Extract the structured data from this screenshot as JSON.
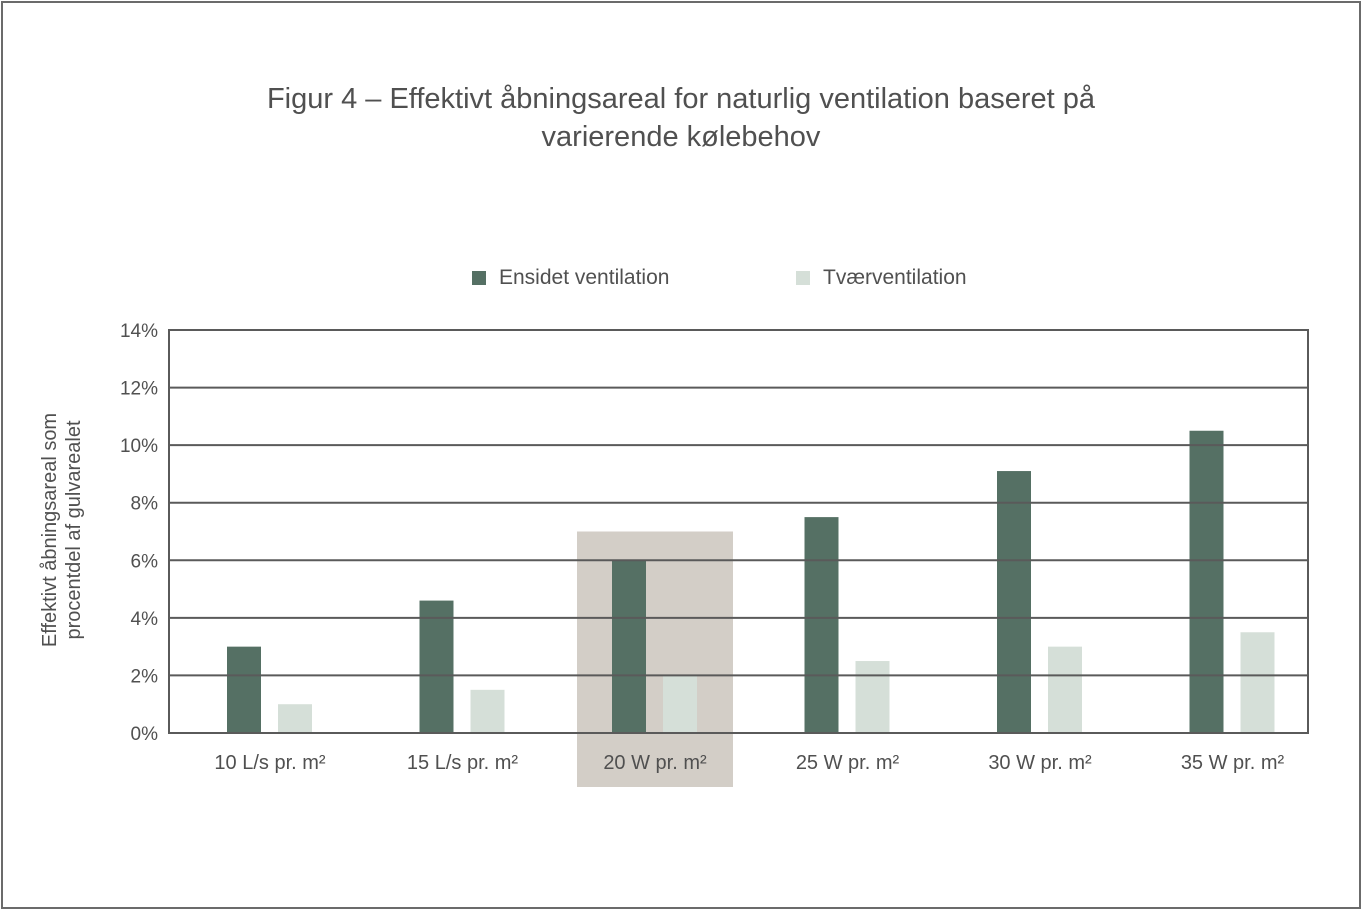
{
  "chart_data": {
    "type": "bar",
    "title": "Figur 4 – Effektivt åbningsareal for naturlig ventilation baseret på varierende kølebehov",
    "title_lines": [
      "Figur 4 – Effektivt åbningsareal for naturlig ventilation baseret på",
      "varierende kølebehov"
    ],
    "xlabel": "",
    "ylabel": "Effektivt åbningsareal som procentdel af gulvarealet",
    "ylabel_lines": [
      "Effektivt åbningsareal som",
      "procentdel af gulvarealet"
    ],
    "ylim": [
      0,
      14
    ],
    "yticks": [
      0,
      2,
      4,
      6,
      8,
      10,
      12,
      14
    ],
    "ytick_labels": [
      "0%",
      "2%",
      "4%",
      "6%",
      "8%",
      "10%",
      "12%",
      "14%"
    ],
    "grid": true,
    "legend_position": "top-center",
    "categories": [
      "10 L/s pr. m²",
      "15 L/s pr. m²",
      "20 W pr. m²",
      "25 W pr. m²",
      "30 W pr. m²",
      "35 W pr. m²"
    ],
    "highlighted_category": "20 W pr. m²",
    "highlight_top_value": 7,
    "series": [
      {
        "name": "Ensidet ventilation",
        "color": "#557064",
        "values": [
          3.0,
          4.6,
          6.0,
          7.5,
          9.1,
          10.5
        ]
      },
      {
        "name": "Tværventilation",
        "color": "#d5dfd8",
        "values": [
          1.0,
          1.5,
          2.0,
          2.5,
          3.0,
          3.5
        ]
      }
    ],
    "colors": {
      "grid": "#5a5a5a",
      "highlight": "#d3cec7",
      "text": "#505050"
    }
  }
}
